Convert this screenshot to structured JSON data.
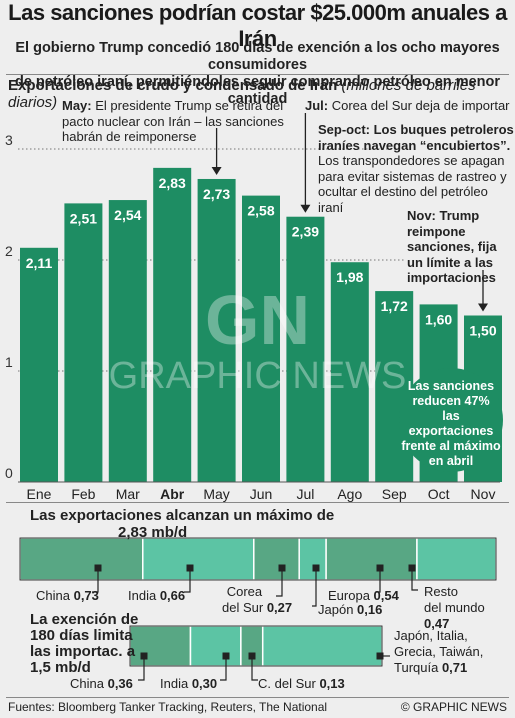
{
  "header": {
    "title": "Las sanciones podrían costar $25.000m anuales a Irán",
    "subtitle_line1": "El gobierno Trump concedió 180 días de exención a los ocho mayores consumidores",
    "subtitle_line2": "de petróleo iraní, permitiéndoles seguir comprando petróleo en menor cantidad"
  },
  "chart_section": {
    "title": "Exportaciones de crudo y condensado de Irán",
    "unit": "(millones de barriles diarios)"
  },
  "colors": {
    "bar": "#1e8d63",
    "bar_light": "#5cc4a4",
    "bar_mid": "#58a784",
    "background": "#eeeeee",
    "dark": "#222222"
  },
  "chart_data": {
    "type": "bar",
    "categories": [
      "Ene",
      "Feb",
      "Mar",
      "Abr",
      "May",
      "Jun",
      "Jul",
      "Ago",
      "Sep",
      "Oct",
      "Nov"
    ],
    "values": [
      2.11,
      2.51,
      2.54,
      2.83,
      2.73,
      2.58,
      2.39,
      1.98,
      1.72,
      1.6,
      1.5
    ],
    "value_labels": [
      "2,11",
      "2,51",
      "2,54",
      "2,83",
      "2,73",
      "2,58",
      "2,39",
      "1,98",
      "1,72",
      "1,60",
      "1,50"
    ],
    "highlight_category": "Abr",
    "y_ticks": [
      "0",
      "1",
      "2",
      "3"
    ],
    "ylim": [
      0,
      3.3
    ],
    "grid": true,
    "annotation_markers": [
      "May",
      "Jul",
      "Nov"
    ]
  },
  "annotations": {
    "may_head": "May:",
    "may_text1": " El presidente Trump se retira del",
    "may_text2": "pacto nuclear con Irán – las sanciones",
    "may_text3": "habrán de reimponerse",
    "jul_head": "Jul:",
    "jul_text": " Corea del Sur deja de importar",
    "sepoct_line1": "Sep-oct: Los buques petroleros",
    "sepoct_line2": "iraníes navegan “encubiertos”.",
    "sepoct_line3": "Los transpondedores se apagan",
    "sepoct_line4": "para evitar sistemas de rastreo y",
    "sepoct_line5": "ocultar el destino del petróleo iraní",
    "nov_line1": "Nov: Trump",
    "nov_line2": "reimpone",
    "nov_line3": "sanciones, fija",
    "nov_line4": "un límite a las",
    "nov_line5": "importaciones"
  },
  "badge": {
    "line1": "Las sanciones",
    "line2": "reducen 47%",
    "line3": "las exportaciones",
    "line4": "frente al máximo",
    "line5": "en abril"
  },
  "peak_section": {
    "title_line1": "Las exportaciones alcanzan un máximo de",
    "title_line2": "2,83 mb/d",
    "segments": [
      {
        "name": "China",
        "value": 0.73,
        "label": "0,73"
      },
      {
        "name": "India",
        "value": 0.66,
        "label": "0,66"
      },
      {
        "name_line1": "Corea",
        "name_line2": "del Sur",
        "value": 0.27,
        "label": "0,27"
      },
      {
        "name": "Japón",
        "value": 0.16,
        "label": "0,16"
      },
      {
        "name": "Europa",
        "value": 0.54,
        "label": "0,54"
      },
      {
        "name_line1": "Resto",
        "name_line2": "del mundo",
        "value": 0.47,
        "label": "0,47"
      }
    ]
  },
  "waiver_section": {
    "title_line1": "La exención de",
    "title_line2": "180 días limita",
    "title_line3": "las importac. a",
    "title_line4": "1,5 mb/d",
    "segments": [
      {
        "name": "China",
        "value": 0.36,
        "label": "0,36"
      },
      {
        "name": "India",
        "value": 0.3,
        "label": "0,30"
      },
      {
        "name": "C. del Sur",
        "value": 0.13,
        "label": "0,13"
      },
      {
        "name_line1": "Japón, Italia,",
        "name_line2": "Grecia, Taiwán,",
        "name_line3": "Turquía",
        "value": 0.71,
        "label": "0,71"
      }
    ]
  },
  "footer": {
    "sources": "Fuentes: Bloomberg Tanker Tracking, Reuters, The National",
    "brand": "© GRAPHIC NEWS"
  },
  "watermark": {
    "logo": "GN",
    "text": "GRAPHIC NEWS"
  }
}
